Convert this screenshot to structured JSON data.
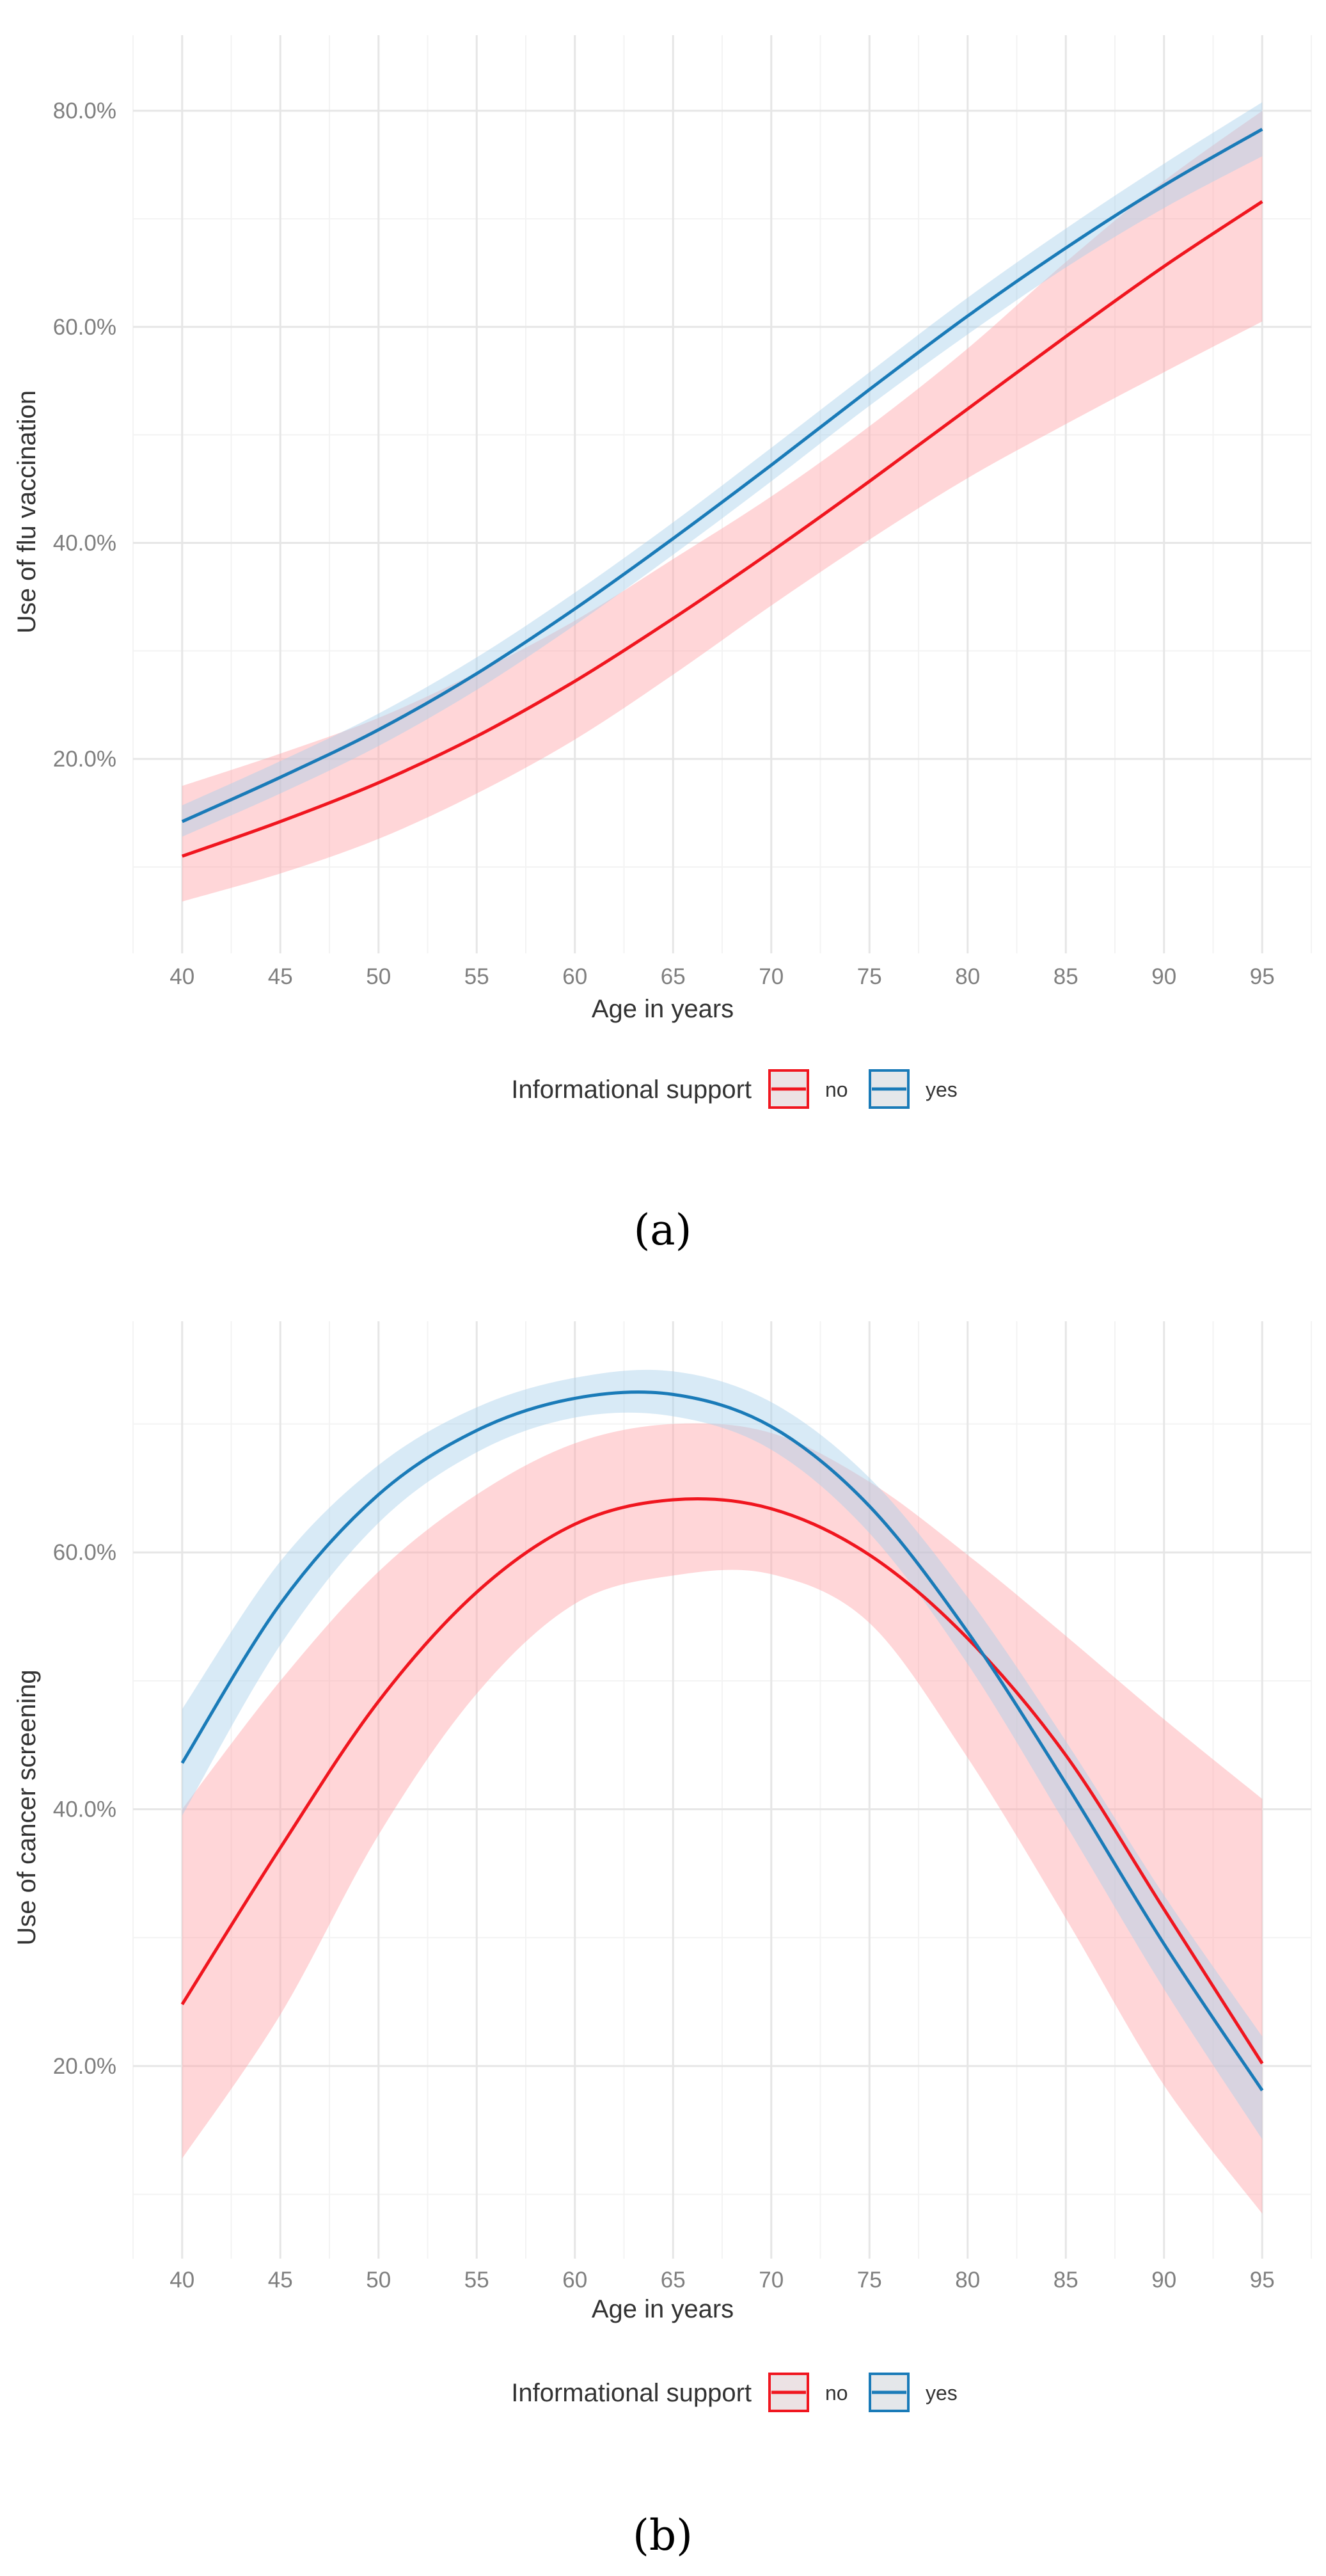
{
  "colors": {
    "no_line": "#f0161f",
    "no_band": "#ffa5a8",
    "yes_line": "#1a7bb8",
    "yes_band": "#a9d1ec",
    "grid_major": "#e6e6e6",
    "grid_minor": "#f3f3f3"
  },
  "chart_data": [
    {
      "type": "line",
      "caption": "(a)",
      "xlabel": "Age in years",
      "ylabel": "Use of flu vaccination",
      "xlim": [
        37.5,
        97.5
      ],
      "ylim": [
        2,
        87
      ],
      "x_ticks": [
        40,
        45,
        50,
        55,
        60,
        65,
        70,
        75,
        80,
        85,
        90,
        95
      ],
      "x_tick_labels": [
        "40",
        "45",
        "50",
        "55",
        "60",
        "65",
        "70",
        "75",
        "80",
        "85",
        "90",
        "95"
      ],
      "y_ticks": [
        20,
        40,
        60,
        80
      ],
      "y_tick_labels": [
        "20.0%",
        "40.0%",
        "60.0%",
        "80.0%"
      ],
      "legend": {
        "title": "Informational support",
        "position": "bottom",
        "entries": [
          "no",
          "yes"
        ]
      },
      "x": [
        40,
        45,
        50,
        55,
        60,
        65,
        70,
        75,
        80,
        85,
        90,
        95
      ],
      "series": [
        {
          "name": "no",
          "values": [
            11,
            14.2,
            17.8,
            22.1,
            27.2,
            33,
            39.2,
            45.7,
            52.4,
            59.1,
            65.6,
            71.6
          ],
          "lower": [
            6.8,
            9.4,
            12.6,
            16.8,
            21.8,
            27.8,
            34.2,
            40.3,
            46,
            51,
            55.8,
            60.5
          ],
          "upper": [
            17.5,
            20.5,
            23.8,
            28,
            32.8,
            38.5,
            44.3,
            50.8,
            58,
            66,
            73.5,
            80
          ]
        },
        {
          "name": "yes",
          "values": [
            14.2,
            18.3,
            22.7,
            27.9,
            33.9,
            40.4,
            47.2,
            54.2,
            61,
            67.3,
            73.1,
            78.3
          ],
          "lower": [
            12.8,
            16.8,
            21.2,
            26.4,
            32.4,
            38.9,
            45.7,
            52.7,
            59.3,
            65.5,
            71,
            75.8
          ],
          "upper": [
            15.7,
            19.8,
            24.2,
            29.4,
            35.4,
            41.9,
            48.8,
            55.8,
            62.7,
            69.1,
            75.1,
            80.8
          ]
        }
      ]
    },
    {
      "type": "line",
      "caption": "(b)",
      "xlabel": "Age in years",
      "ylabel": "Use of cancer screening",
      "xlim": [
        37.5,
        97.5
      ],
      "ylim": [
        5,
        78
      ],
      "x_ticks": [
        40,
        45,
        50,
        55,
        60,
        65,
        70,
        75,
        80,
        85,
        90,
        95
      ],
      "x_tick_labels": [
        "40",
        "45",
        "50",
        "55",
        "60",
        "65",
        "70",
        "75",
        "80",
        "85",
        "90",
        "95"
      ],
      "y_ticks": [
        20,
        40,
        60
      ],
      "y_tick_labels": [
        "20.0%",
        "40.0%",
        "60.0%"
      ],
      "legend": {
        "title": "Informational support",
        "position": "bottom",
        "entries": [
          "no",
          "yes"
        ]
      },
      "x": [
        40,
        45,
        50,
        55,
        60,
        65,
        70,
        75,
        80,
        85,
        90,
        95
      ],
      "series": [
        {
          "name": "no",
          "values": [
            24.8,
            37,
            48.4,
            56.9,
            62.2,
            64.1,
            63.4,
            59.8,
            53.3,
            44.2,
            32.2,
            20.2
          ],
          "lower": [
            12.8,
            24,
            38,
            49,
            56,
            58.2,
            58.3,
            54.5,
            44,
            31.5,
            18.5,
            8.5
          ],
          "upper": [
            40,
            50,
            58.5,
            64.5,
            68.5,
            70,
            69.3,
            65.5,
            59.8,
            53.5,
            47,
            40.8
          ]
        },
        {
          "name": "yes",
          "values": [
            43.6,
            56,
            64.5,
            69.5,
            72,
            72.3,
            69.8,
            63.6,
            53.8,
            42,
            29.5,
            18.1
          ],
          "lower": [
            39.5,
            52.8,
            62.3,
            67.8,
            70.5,
            70.6,
            68,
            61.5,
            51.3,
            38.8,
            26,
            14.3
          ],
          "upper": [
            47.8,
            59.3,
            66.8,
            71.3,
            73.6,
            74.1,
            71.7,
            65.8,
            56.5,
            45.3,
            33.3,
            22.3
          ]
        }
      ]
    }
  ]
}
